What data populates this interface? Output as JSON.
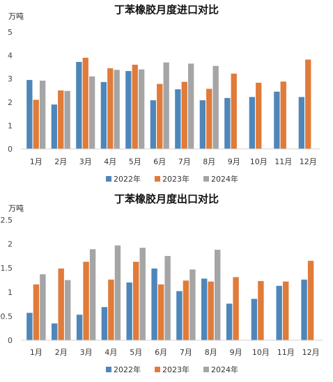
{
  "chart_data": [
    {
      "type": "bar",
      "title": "丁苯橡胶月度进口对比",
      "unit": "万吨",
      "categories": [
        "1月",
        "2月",
        "3月",
        "4月",
        "5月",
        "6月",
        "7月",
        "8月",
        "9月",
        "10月",
        "11月",
        "12月"
      ],
      "ylim": [
        0,
        5
      ],
      "yticks": [
        "0",
        "1",
        "2",
        "3",
        "4",
        "5"
      ],
      "grid": false,
      "legend_position": "bottom",
      "series": [
        {
          "name": "2022年",
          "color": "#4f86b9",
          "values": [
            2.95,
            1.9,
            3.72,
            2.86,
            3.33,
            2.08,
            2.55,
            2.08,
            2.18,
            2.22,
            2.45,
            2.22
          ]
        },
        {
          "name": "2023年",
          "color": "#e07b39",
          "values": [
            2.1,
            2.5,
            3.9,
            3.45,
            3.6,
            2.78,
            2.87,
            2.57,
            3.22,
            2.83,
            2.88,
            3.82
          ]
        },
        {
          "name": "2024年",
          "color": "#a5a5a5",
          "values": [
            2.92,
            2.48,
            3.1,
            3.38,
            3.4,
            3.7,
            3.65,
            3.55,
            null,
            null,
            null,
            null
          ]
        }
      ]
    },
    {
      "type": "bar",
      "title": "丁苯橡胶月度出口对比",
      "unit": "万吨",
      "categories": [
        "1月",
        "2月",
        "3月",
        "4月",
        "5月",
        "6月",
        "7月",
        "8月",
        "9月",
        "10月",
        "11月",
        "12月"
      ],
      "ylim": [
        0,
        2.5
      ],
      "yticks": [
        "0",
        "0.5",
        "1",
        "1.5",
        "2",
        "2.5"
      ],
      "grid": false,
      "legend_position": "bottom",
      "series": [
        {
          "name": "2022年",
          "color": "#4f86b9",
          "values": [
            0.57,
            0.35,
            0.53,
            0.69,
            1.2,
            1.49,
            1.02,
            1.28,
            0.76,
            0.86,
            1.13,
            1.26
          ]
        },
        {
          "name": "2023年",
          "color": "#e07b39",
          "values": [
            1.16,
            1.49,
            1.63,
            1.26,
            1.63,
            1.16,
            1.24,
            1.22,
            1.31,
            1.23,
            1.22,
            1.65
          ]
        },
        {
          "name": "2024年",
          "color": "#a5a5a5",
          "values": [
            1.37,
            1.25,
            1.89,
            1.97,
            1.92,
            1.75,
            1.47,
            1.88,
            null,
            null,
            null,
            null
          ]
        }
      ]
    }
  ]
}
